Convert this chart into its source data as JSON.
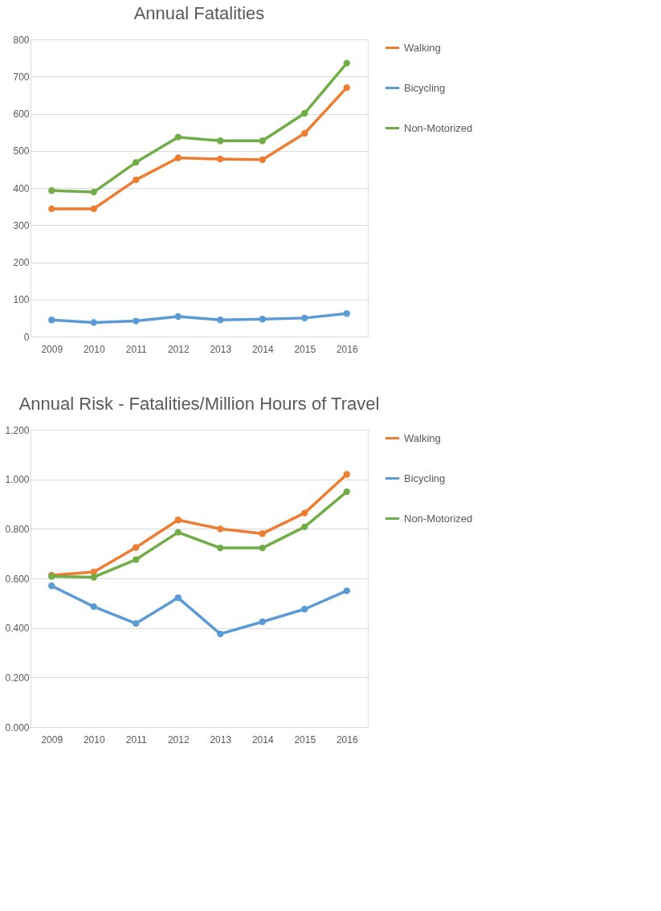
{
  "chart_data": [
    {
      "type": "line",
      "title": "Annual Fatalities",
      "categories": [
        "2009",
        "2010",
        "2011",
        "2012",
        "2013",
        "2014",
        "2015",
        "2016"
      ],
      "series": [
        {
          "name": "Walking",
          "color": "#ed7d31",
          "values": [
            344,
            344,
            422,
            481,
            478,
            476,
            547,
            670
          ]
        },
        {
          "name": "Bicycling",
          "color": "#5b9bd5",
          "values": [
            45,
            38,
            42,
            54,
            45,
            47,
            50,
            62
          ]
        },
        {
          "name": "Non-Motorized",
          "color": "#70ad47",
          "values": [
            393,
            389,
            469,
            537,
            527,
            527,
            601,
            736
          ]
        }
      ],
      "ylim": [
        0,
        800
      ],
      "yticks": [
        0,
        100,
        200,
        300,
        400,
        500,
        600,
        700,
        800
      ],
      "grid": "y",
      "legend": "right",
      "marker": "circle"
    },
    {
      "type": "line",
      "title": "Annual Risk - Fatalities/Million Hours of Travel",
      "categories": [
        "2009",
        "2010",
        "2011",
        "2012",
        "2013",
        "2014",
        "2015",
        "2016"
      ],
      "series": [
        {
          "name": "Walking",
          "color": "#ed7d31",
          "values": [
            0.613,
            0.626,
            0.725,
            0.836,
            0.8,
            0.781,
            0.864,
            1.02
          ]
        },
        {
          "name": "Bicycling",
          "color": "#5b9bd5",
          "values": [
            0.57,
            0.486,
            0.418,
            0.522,
            0.376,
            0.425,
            0.476,
            0.55
          ]
        },
        {
          "name": "Non-Motorized",
          "color": "#70ad47",
          "values": [
            0.608,
            0.605,
            0.676,
            0.786,
            0.723,
            0.723,
            0.808,
            0.95
          ]
        }
      ],
      "ylim": [
        0,
        1.2
      ],
      "yticks": [
        {
          "value": 0,
          "label": "0.000"
        },
        {
          "value": 0.2,
          "label": "0.200"
        },
        {
          "value": 0.4,
          "label": "0.400"
        },
        {
          "value": 0.6,
          "label": "0.600"
        },
        {
          "value": 0.8,
          "label": "0.800"
        },
        {
          "value": 1.0,
          "label": "1.000"
        },
        {
          "value": 1.2,
          "label": "1.200"
        }
      ],
      "grid": "y",
      "legend": "right",
      "marker": "circle"
    }
  ]
}
